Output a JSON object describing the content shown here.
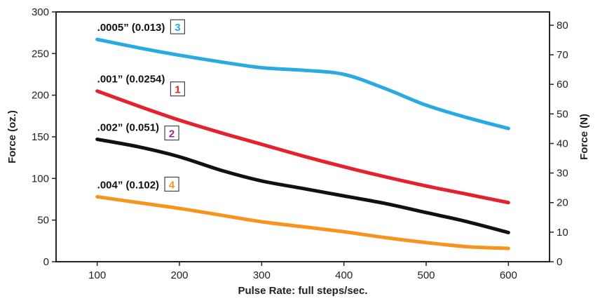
{
  "chart_data": {
    "type": "line",
    "title": "",
    "xlabel": "Pulse Rate: full steps/sec.",
    "ylabel": "Force (oz.)",
    "y2label": "Force (N)",
    "xlim": [
      50,
      650
    ],
    "ylim": [
      0,
      300
    ],
    "y2lim": [
      0,
      84.5
    ],
    "x_ticks": [
      100,
      200,
      300,
      400,
      500,
      600
    ],
    "y_ticks": [
      0,
      50,
      100,
      150,
      200,
      250,
      300
    ],
    "y2_ticks": [
      0,
      10,
      20,
      30,
      40,
      50,
      60,
      70,
      80
    ],
    "grid": false,
    "series": [
      {
        "name": ".0005” (0.013)",
        "badge": "3",
        "color": "#29ABE2",
        "x": [
          100,
          150,
          200,
          250,
          300,
          350,
          400,
          450,
          500,
          550,
          600
        ],
        "y": [
          267,
          257,
          248,
          240,
          233,
          230,
          225,
          208,
          188,
          173,
          160
        ]
      },
      {
        "name": ".001” (0.0254)",
        "badge": "1",
        "color": "#E5212E",
        "x": [
          100,
          150,
          200,
          250,
          300,
          350,
          400,
          450,
          500,
          550,
          600
        ],
        "y": [
          205,
          187,
          170,
          155,
          141,
          127,
          114,
          102,
          91,
          81,
          71
        ]
      },
      {
        "name": ".002” (0.051)",
        "badge": "2",
        "color": "#111111",
        "badge_color": "#8E2A8E",
        "x": [
          100,
          150,
          200,
          250,
          300,
          350,
          400,
          450,
          500,
          550,
          600
        ],
        "y": [
          147,
          138,
          126,
          110,
          97,
          88,
          79,
          70,
          59,
          48,
          35
        ]
      },
      {
        "name": ".004” (0.102)",
        "badge": "4",
        "color": "#F7941D",
        "x": [
          100,
          150,
          200,
          250,
          300,
          350,
          400,
          450,
          500,
          550,
          600
        ],
        "y": [
          78,
          71,
          64,
          56,
          48,
          42,
          36,
          29,
          23,
          18,
          16
        ]
      }
    ]
  }
}
